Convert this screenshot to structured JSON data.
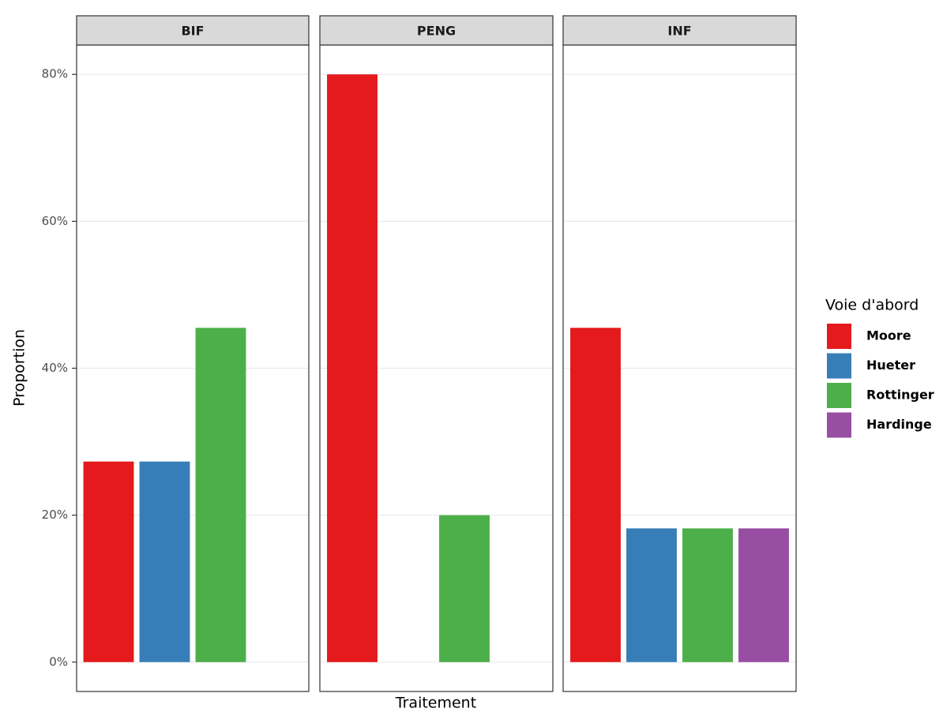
{
  "chart_data": {
    "type": "bar",
    "categories": [
      "BIF",
      "PENG",
      "INF"
    ],
    "series": [
      {
        "name": "Moore",
        "color": "#e41a1c",
        "values": [
          27.3,
          80,
          45.5
        ]
      },
      {
        "name": "Hueter",
        "color": "#377eb8",
        "values": [
          27.3,
          null,
          18.2
        ]
      },
      {
        "name": "Rottinger",
        "color": "#4daf4a",
        "values": [
          45.5,
          20,
          18.2
        ]
      },
      {
        "name": "Hardinge",
        "color": "#984ea3",
        "values": [
          null,
          null,
          18.2
        ]
      }
    ],
    "ylim": [
      -4,
      84
    ],
    "yticks": [
      {
        "value": 0,
        "label": "0%"
      },
      {
        "value": 20,
        "label": "20%"
      },
      {
        "value": 40,
        "label": "40%"
      },
      {
        "value": 60,
        "label": "60%"
      },
      {
        "value": 80,
        "label": "80%"
      }
    ],
    "xlabel": "Traitement",
    "ylabel": "Proportion",
    "legend_title": "Voie d'abord",
    "grid": true
  }
}
